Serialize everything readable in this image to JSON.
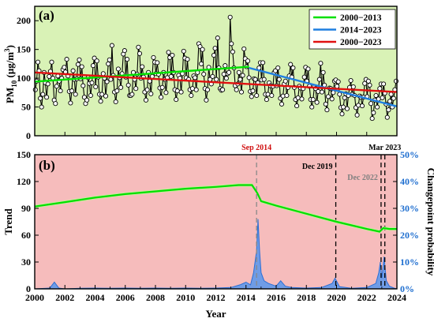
{
  "chart_data": [
    {
      "id": "a",
      "type": "line",
      "panel_label": "(a)",
      "ylabel": {
        "base": "PM",
        "sub": "10",
        "mid": " (μg/m",
        "sup": "3",
        "end": ")"
      },
      "xlim": [
        2000,
        2024
      ],
      "ylim": [
        0,
        225
      ],
      "yticks": [
        0,
        50,
        100,
        150,
        200
      ],
      "background": "#d9f2b6",
      "observed": {
        "name": "PM10 monthly",
        "color": "#000000",
        "start_year": 2000.04,
        "step": 0.0833,
        "values": [
          80,
          95,
          128,
          113,
          65,
          50,
          72,
          110,
          92,
          67,
          90,
          103,
          112,
          128,
          100,
          62,
          56,
          86,
          104,
          95,
          78,
          100,
          115,
          119,
          111,
          133,
          104,
          77,
          57,
          78,
          113,
          98,
          72,
          99,
          124,
          132,
          99,
          120,
          87,
          67,
          56,
          62,
          101,
          91,
          70,
          92,
          122,
          135,
          85,
          130,
          102,
          72,
          60,
          72,
          108,
          100,
          69,
          94,
          125,
          132,
          98,
          157,
          105,
          76,
          59,
          78,
          116,
          101,
          84,
          108,
          142,
          148,
          102,
          133,
          88,
          70,
          70,
          72,
          110,
          98,
          82,
          107,
          154,
          143,
          100,
          120,
          102,
          76,
          62,
          80,
          110,
          95,
          73,
          103,
          136,
          128,
          108,
          127,
          107,
          83,
          67,
          84,
          110,
          98,
          75,
          101,
          145,
          136,
          103,
          140,
          110,
          80,
          63,
          78,
          105,
          100,
          76,
          108,
          147,
          135,
          101,
          133,
          98,
          80,
          70,
          82,
          104,
          101,
          80,
          110,
          160,
          155,
          125,
          150,
          107,
          82,
          62,
          80,
          119,
          98,
          90,
          103,
          140,
          152,
          98,
          170,
          118,
          82,
          79,
          80,
          107,
          122,
          100,
          108,
          110,
          206,
          160,
          146,
          118,
          87,
          80,
          90,
          110,
          98,
          76,
          105,
          151,
          134,
          120,
          130,
          101,
          77,
          68,
          78,
          99,
          98,
          70,
          92,
          118,
          127,
          97,
          127,
          98,
          72,
          63,
          72,
          92,
          87,
          70,
          86,
          110,
          113,
          87,
          118,
          98,
          65,
          55,
          69,
          90,
          95,
          70,
          84,
          104,
          124,
          102,
          118,
          84,
          63,
          52,
          66,
          86,
          83,
          64,
          82,
          102,
          119,
          95,
          116,
          86,
          63,
          50,
          63,
          85,
          82,
          58,
          77,
          98,
          126,
          76,
          110,
          88,
          55,
          45,
          68,
          83,
          82,
          64,
          75,
          95,
          97,
          86,
          94,
          72,
          49,
          38,
          50,
          66,
          73,
          47,
          70,
          84,
          96,
          72,
          85,
          70,
          49,
          36,
          53,
          69,
          67,
          52,
          67,
          91,
          98,
          68,
          95,
          88,
          56,
          30,
          40,
          62,
          70,
          50,
          64,
          82,
          90,
          66,
          90,
          74,
          55,
          32,
          45,
          60,
          72,
          50,
          65,
          80,
          95
        ]
      },
      "trends": [
        {
          "name": "2000−2013",
          "color": "#00e000",
          "x": [
            2000,
            2014.2
          ],
          "y": [
            94,
            120
          ]
        },
        {
          "name": "2014−2023",
          "color": "#1f7fe0",
          "x": [
            2014.2,
            2024
          ],
          "y": [
            118,
            51
          ]
        },
        {
          "name": "2000−2023",
          "color": "#e01010",
          "x": [
            2000,
            2024
          ],
          "y": [
            110,
            76
          ]
        }
      ],
      "legend": "top-right"
    },
    {
      "id": "b",
      "type": "line",
      "panel_label": "(b)",
      "xlabel": "Year",
      "ylabel": "Trend",
      "y2label": "Changepoint probability",
      "xlim": [
        2000,
        2024
      ],
      "xticks": [
        2000,
        2002,
        2004,
        2006,
        2008,
        2010,
        2012,
        2014,
        2016,
        2018,
        2020,
        2022,
        2024
      ],
      "ylim": [
        0,
        150
      ],
      "yticks": [
        0,
        30,
        60,
        90,
        120,
        150
      ],
      "y2lim": [
        0,
        50
      ],
      "y2ticks": [
        "0%",
        "10%",
        "20%",
        "30%",
        "40%",
        "50%"
      ],
      "background": "#f6bcbc",
      "trend": {
        "name": "Trend",
        "color": "#00e000",
        "x": [
          2000,
          2002,
          2004,
          2006,
          2008,
          2010,
          2012,
          2013.5,
          2014.4,
          2014.75,
          2015,
          2016,
          2018,
          2020,
          2021,
          2022,
          2022.85,
          2023.1,
          2023.5,
          2024
        ],
        "y": [
          92,
          97,
          102,
          106,
          109,
          112,
          114,
          116,
          116,
          107,
          98,
          93,
          84,
          75,
          71,
          67,
          64,
          68,
          67,
          67
        ]
      },
      "changepoint_probability": {
        "name": "Changepoint probability",
        "color": "#2a6fd6",
        "x": [
          2000,
          2001,
          2001.3,
          2001.6,
          2002,
          2003,
          2004,
          2005,
          2006,
          2007,
          2008,
          2009,
          2010,
          2011,
          2012,
          2013,
          2013.6,
          2014,
          2014.3,
          2014.5,
          2014.7,
          2014.8,
          2014.9,
          2015.0,
          2015.2,
          2015.5,
          2016,
          2016.3,
          2016.6,
          2017,
          2018,
          2019,
          2019.7,
          2019.9,
          2020.2,
          2021,
          2022,
          2022.6,
          2022.8,
          2022.9,
          2023.0,
          2023.15,
          2023.3,
          2023.5,
          2023.8,
          2024
        ],
        "y": [
          0,
          0.3,
          2.5,
          0.3,
          0,
          0.2,
          0.3,
          0.2,
          0.3,
          0.2,
          0.3,
          0.2,
          0.3,
          0.2,
          0.3,
          0.5,
          1.5,
          2.5,
          1.5,
          6,
          14,
          26,
          14,
          6,
          3,
          2,
          1,
          3,
          1,
          0.5,
          0.3,
          0.5,
          2,
          4,
          0.8,
          0.2,
          0.5,
          2,
          6,
          10,
          4,
          12,
          3,
          1,
          0.3,
          0
        ]
      },
      "events": [
        {
          "label": "Sep 2014",
          "x": 2014.7,
          "color": "#d01010",
          "line_color": "#888888"
        },
        {
          "label": "Dec 2019",
          "x": 2019.95,
          "color": "#000000",
          "line_color": "#000000"
        },
        {
          "label": "Dec 2022",
          "x": 2022.95,
          "color": "#808080",
          "line_color": "#000000"
        },
        {
          "label": "Mar 2023",
          "x": 2023.2,
          "color": "#000000",
          "line_color": "#000000"
        }
      ]
    }
  ]
}
